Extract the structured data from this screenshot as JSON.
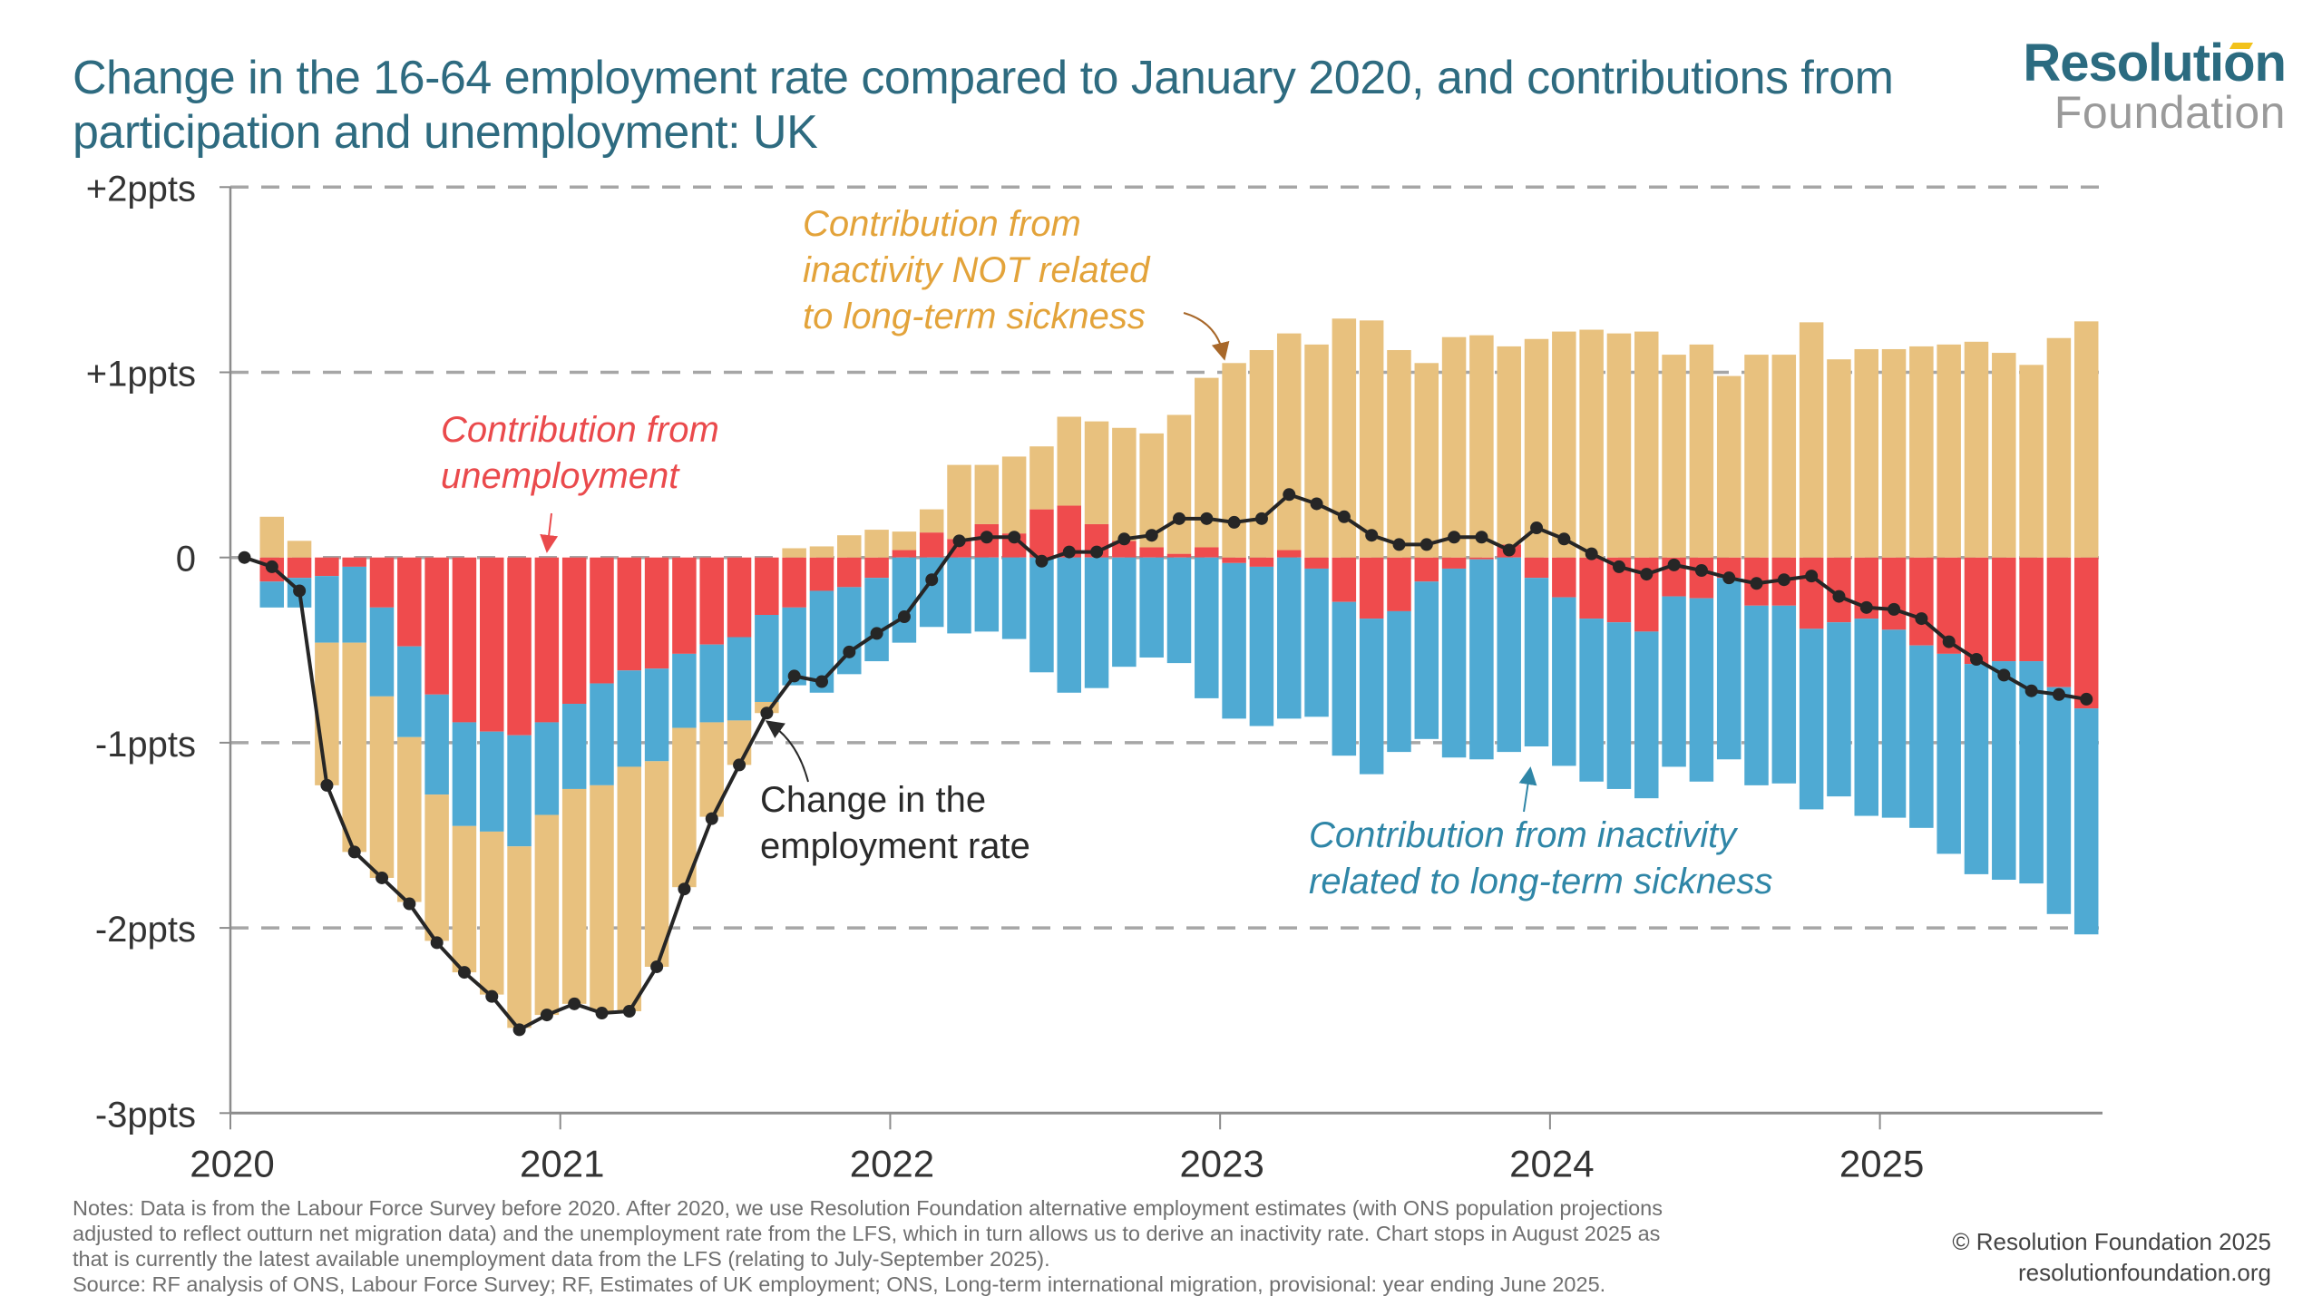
{
  "header": {
    "title": "Change in the 16-64 employment rate compared to January 2020, and contributions from participation and unemployment: UK",
    "logo_top": "Resolution",
    "logo_bottom": "Foundation"
  },
  "colors": {
    "title": "#2e6b80",
    "unemployment": "#ef4b4d",
    "sickness_inactivity": "#4faad3",
    "other_inactivity": "#e8c17e",
    "employment_line": "#262626",
    "grid": "#a6a6a6",
    "axis": "#8c8c8c"
  },
  "annotations": {
    "other_inactivity": [
      "Contribution from",
      "inactivity NOT related",
      "to long-term sickness"
    ],
    "unemployment": [
      "Contribution from",
      "unemployment"
    ],
    "employment_rate": [
      "Change in the",
      "employment rate"
    ],
    "sickness_inactivity": [
      "Contribution from inactivity",
      "related to long-term sickness"
    ]
  },
  "footer": {
    "notes": [
      "Notes: Data is from the Labour Force Survey before 2020. After 2020, we use Resolution Foundation alternative employment estimates (with ONS population projections",
      "adjusted to reflect outturn net migration data) and the unemployment rate from the LFS, which in turn allows us to derive an inactivity rate. Chart stops in August 2025 as",
      "that is currently the latest available unemployment data from the LFS (relating to July-September 2025).",
      "Source: RF analysis of ONS, Labour Force Survey; RF, Estimates of UK employment; ONS, Long-term international migration, provisional: year ending June 2025."
    ],
    "copyright": "© Resolution Foundation 2025",
    "website": "resolutionfoundation.org"
  },
  "chart_data": {
    "type": "bar",
    "stacked": true,
    "title": "Change in the 16-64 employment rate compared to January 2020, and contributions from participation and unemployment: UK",
    "xlabel": "",
    "ylabel": "",
    "ylim": [
      -3,
      2
    ],
    "y_ticks": [
      2,
      1,
      0,
      -1,
      -2,
      -3
    ],
    "y_tick_labels": [
      "+2ppts",
      "+1ppts",
      "0",
      "-1ppts",
      "-2ppts",
      "-3ppts"
    ],
    "x_tick_labels": [
      "2020",
      "2021",
      "2022",
      "2023",
      "2024",
      "2025"
    ],
    "x_start": "2020-01",
    "x_end_axis": "2025-09",
    "grid": "horizontal dashed",
    "x": [
      "2020-01",
      "2020-02",
      "2020-03",
      "2020-04",
      "2020-05",
      "2020-06",
      "2020-07",
      "2020-08",
      "2020-09",
      "2020-10",
      "2020-11",
      "2020-12",
      "2021-01",
      "2021-02",
      "2021-03",
      "2021-04",
      "2021-05",
      "2021-06",
      "2021-07",
      "2021-08",
      "2021-09",
      "2021-10",
      "2021-11",
      "2021-12",
      "2022-01",
      "2022-02",
      "2022-03",
      "2022-04",
      "2022-05",
      "2022-06",
      "2022-07",
      "2022-08",
      "2022-09",
      "2022-10",
      "2022-11",
      "2022-12",
      "2023-01",
      "2023-02",
      "2023-03",
      "2023-04",
      "2023-05",
      "2023-06",
      "2023-07",
      "2023-08",
      "2023-09",
      "2023-10",
      "2023-11",
      "2023-12",
      "2024-01",
      "2024-02",
      "2024-03",
      "2024-04",
      "2024-05",
      "2024-06",
      "2024-07",
      "2024-08",
      "2024-09",
      "2024-10",
      "2024-11",
      "2024-12",
      "2025-01",
      "2025-02",
      "2025-03",
      "2025-04",
      "2025-05",
      "2025-06",
      "2025-07",
      "2025-08"
    ],
    "series": [
      {
        "name": "Contribution from unemployment",
        "kind": "bar",
        "values": [
          null,
          -0.13,
          -0.11,
          -0.1,
          -0.05,
          -0.27,
          -0.48,
          -0.74,
          -0.89,
          -0.94,
          -0.96,
          -0.89,
          -0.79,
          -0.68,
          -0.61,
          -0.6,
          -0.52,
          -0.47,
          -0.43,
          -0.31,
          -0.27,
          -0.18,
          -0.16,
          -0.11,
          0.04,
          0.135,
          0.1,
          0.18,
          0.13,
          0.26,
          0.28,
          0.18,
          0.09,
          0.055,
          0.02,
          0.055,
          -0.03,
          -0.05,
          0.04,
          -0.06,
          -0.24,
          -0.33,
          -0.29,
          -0.13,
          -0.06,
          -0.01,
          0.07,
          -0.11,
          -0.215,
          -0.33,
          -0.35,
          -0.4,
          -0.21,
          -0.22,
          -0.11,
          -0.26,
          -0.26,
          -0.385,
          -0.35,
          -0.33,
          -0.39,
          -0.475,
          -0.52,
          -0.575,
          -0.56,
          -0.56,
          -0.7,
          -0.815
        ]
      },
      {
        "name": "Contribution from inactivity related to long-term sickness",
        "kind": "bar",
        "values": [
          null,
          -0.14,
          -0.16,
          -0.36,
          -0.41,
          -0.48,
          -0.49,
          -0.54,
          -0.56,
          -0.54,
          -0.6,
          -0.5,
          -0.46,
          -0.55,
          -0.52,
          -0.5,
          -0.4,
          -0.42,
          -0.45,
          -0.47,
          -0.42,
          -0.55,
          -0.47,
          -0.45,
          -0.46,
          -0.375,
          -0.41,
          -0.4,
          -0.44,
          -0.62,
          -0.73,
          -0.705,
          -0.59,
          -0.54,
          -0.57,
          -0.76,
          -0.84,
          -0.86,
          -0.87,
          -0.8,
          -0.83,
          -0.84,
          -0.76,
          -0.85,
          -1.02,
          -1.08,
          -1.05,
          -0.91,
          -0.91,
          -0.88,
          -0.9,
          -0.9,
          -0.92,
          -0.99,
          -0.98,
          -0.97,
          -0.96,
          -0.975,
          -0.94,
          -1.065,
          -1.015,
          -0.985,
          -1.08,
          -1.135,
          -1.18,
          -1.2,
          -1.225,
          -1.22
        ]
      },
      {
        "name": "Contribution from inactivity NOT related to long-term sickness",
        "kind": "bar",
        "values": [
          null,
          0.22,
          0.09,
          -0.77,
          -1.13,
          -0.98,
          -0.89,
          -0.79,
          -0.79,
          -0.88,
          -0.98,
          -1.08,
          -1.16,
          -1.22,
          -1.32,
          -1.11,
          -0.86,
          -0.51,
          -0.24,
          -0.06,
          0.05,
          0.06,
          0.12,
          0.15,
          0.1,
          0.125,
          0.4,
          0.32,
          0.415,
          0.34,
          0.48,
          0.555,
          0.61,
          0.615,
          0.75,
          0.915,
          1.05,
          1.12,
          1.17,
          1.15,
          1.29,
          1.28,
          1.12,
          1.05,
          1.19,
          1.2,
          1.07,
          1.18,
          1.22,
          1.23,
          1.21,
          1.22,
          1.095,
          1.15,
          0.98,
          1.095,
          1.095,
          1.27,
          1.07,
          1.125,
          1.125,
          1.14,
          1.15,
          1.165,
          1.105,
          1.04,
          1.185,
          1.275
        ]
      },
      {
        "name": "Change in the employment rate",
        "kind": "line",
        "values": [
          0,
          -0.05,
          -0.18,
          -1.23,
          -1.59,
          -1.73,
          -1.87,
          -2.08,
          -2.24,
          -2.37,
          -2.55,
          -2.47,
          -2.41,
          -2.46,
          -2.45,
          -2.21,
          -1.79,
          -1.41,
          -1.12,
          -0.84,
          -0.64,
          -0.67,
          -0.51,
          -0.41,
          -0.32,
          -0.12,
          0.09,
          0.11,
          0.11,
          -0.02,
          0.03,
          0.03,
          0.1,
          0.12,
          0.21,
          0.21,
          0.19,
          0.21,
          0.34,
          0.29,
          0.22,
          0.12,
          0.07,
          0.07,
          0.11,
          0.11,
          0.04,
          0.16,
          0.1,
          0.02,
          -0.05,
          -0.09,
          -0.04,
          -0.07,
          -0.11,
          -0.14,
          -0.12,
          -0.1,
          -0.21,
          -0.27,
          -0.28,
          -0.33,
          -0.455,
          -0.55,
          -0.635,
          -0.72,
          -0.74,
          -0.765
        ]
      }
    ]
  }
}
